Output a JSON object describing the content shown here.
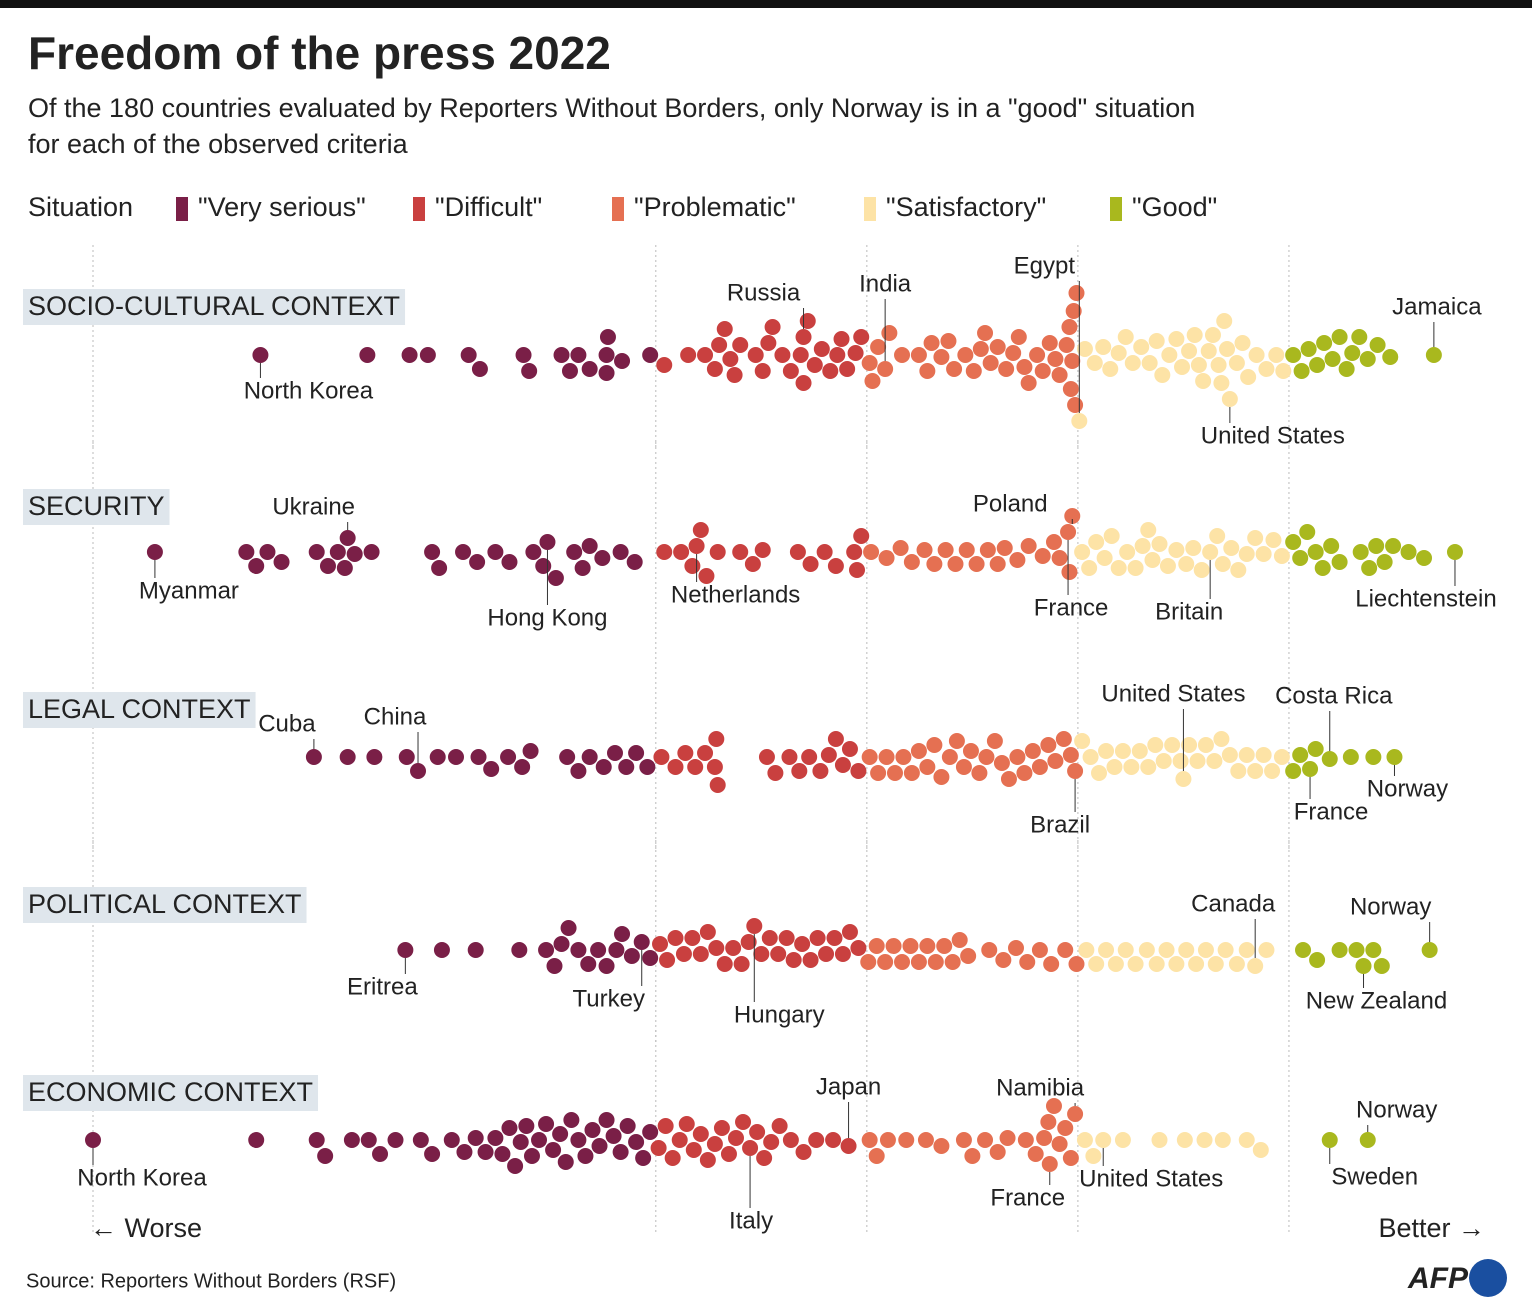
{
  "title": "Freedom of the press 2022",
  "subtitle": [
    "Of the 180 countries evaluated by Reporters Without Borders, only Norway is in a \"good\" situation",
    "for each of the observed criteria"
  ],
  "legend_title": "Situation",
  "legend": [
    {
      "name": "\"Very serious\"",
      "color": "#7a1f47"
    },
    {
      "name": "\"Difficult\"",
      "color": "#c9403f"
    },
    {
      "name": "\"Problematic\"",
      "color": "#e57052"
    },
    {
      "name": "\"Satisfactory\"",
      "color": "#fde3a6"
    },
    {
      "name": "\"Good\"",
      "color": "#a9b81e"
    }
  ],
  "chart_data": [
    {
      "type": "beeswarm",
      "title": "SOCIO-CULTURAL CONTEXT",
      "xlim": [
        0,
        100
      ],
      "xticks": [
        0,
        40,
        55,
        70,
        85
      ],
      "values": [
        11.9,
        19.5,
        22.5,
        23.8,
        26.7,
        27.5,
        30.6,
        31.0,
        33.3,
        33.9,
        34.5,
        35.3,
        36.5,
        36.5,
        36.6,
        37.6,
        39.6,
        40.6,
        42.3,
        43.5,
        44.2,
        44.5,
        44.9,
        45.3,
        45.6,
        46.0,
        47.1,
        47.6,
        48.0,
        48.3,
        49.0,
        49.6,
        50.3,
        50.5,
        50.5,
        50.8,
        51.3,
        51.8,
        52.4,
        52.9,
        53.2,
        53.6,
        54.2,
        54.6,
        55.2,
        55.4,
        55.8,
        56.3,
        56.6,
        57.5,
        58.7,
        59.3,
        59.6,
        60.3,
        60.8,
        61.2,
        62.0,
        62.6,
        63.1,
        63.4,
        63.8,
        64.3,
        64.9,
        65.4,
        65.8,
        66.2,
        66.5,
        67.1,
        67.5,
        68.0,
        68.4,
        68.7,
        69.2,
        69.4,
        69.5,
        69.6,
        69.7,
        69.8,
        69.9,
        70.1,
        70.5,
        71.2,
        71.8,
        72.3,
        72.9,
        73.4,
        73.9,
        74.5,
        75.1,
        75.6,
        76.0,
        76.5,
        77.0,
        77.4,
        77.9,
        78.3,
        78.6,
        78.9,
        79.3,
        79.6,
        80.0,
        80.2,
        80.4,
        80.6,
        80.8,
        81.3,
        81.7,
        82.1,
        82.7,
        83.4,
        84.1,
        84.6,
        85.3,
        85.9,
        86.4,
        87.0,
        87.5,
        88.1,
        88.6,
        89.1,
        89.5,
        90.0,
        90.6,
        91.3,
        92.2,
        95.3
      ],
      "annotations": [
        {
          "label": "North Korea",
          "value": 11.9
        },
        {
          "label": "Russia",
          "value": 50.5
        },
        {
          "label": "India",
          "value": 56.3
        },
        {
          "label": "Egypt",
          "value": 70.1
        },
        {
          "label": "Jamaica",
          "value": 95.3
        },
        {
          "label": "United States",
          "value": 80.8
        }
      ]
    },
    {
      "type": "beeswarm",
      "title": "SECURITY",
      "xlim": [
        0,
        100
      ],
      "xticks": [
        0,
        40,
        55,
        70,
        85
      ],
      "values": [
        4.4,
        10.9,
        11.6,
        12.4,
        13.4,
        15.9,
        16.7,
        17.4,
        17.9,
        18.1,
        18.6,
        19.8,
        24.1,
        24.6,
        26.3,
        27.3,
        28.6,
        29.6,
        31.3,
        32.0,
        32.3,
        32.9,
        34.2,
        34.8,
        35.3,
        36.2,
        37.5,
        38.5,
        40.6,
        41.8,
        42.6,
        42.9,
        43.2,
        43.6,
        44.4,
        46.0,
        46.9,
        47.6,
        50.1,
        51.0,
        52.0,
        52.8,
        54.1,
        54.3,
        54.6,
        55.3,
        56.4,
        57.4,
        58.2,
        59.1,
        59.8,
        60.6,
        61.3,
        62.1,
        62.8,
        63.6,
        64.3,
        64.8,
        65.7,
        66.5,
        67.5,
        68.3,
        68.7,
        69.4,
        69.6,
        69.3,
        70.3,
        70.8,
        71.3,
        71.9,
        72.4,
        72.9,
        73.5,
        74.1,
        74.6,
        75.0,
        75.3,
        75.8,
        76.4,
        77.0,
        77.7,
        78.2,
        78.8,
        79.4,
        79.9,
        80.3,
        80.9,
        81.4,
        82.0,
        82.6,
        83.2,
        83.9,
        84.5,
        85.3,
        85.8,
        86.3,
        86.9,
        87.4,
        88.0,
        88.6,
        90.1,
        90.7,
        91.2,
        91.8,
        92.4,
        93.5,
        94.6,
        96.8
      ],
      "annotations": [
        {
          "label": "Myanmar",
          "value": 4.4
        },
        {
          "label": "Ukraine",
          "value": 18.1
        },
        {
          "label": "Hong Kong",
          "value": 32.3
        },
        {
          "label": "Netherlands",
          "value": 42.9
        },
        {
          "label": "Poland",
          "value": 69.6
        },
        {
          "label": "France",
          "value": 69.3
        },
        {
          "label": "Britain",
          "value": 79.4
        },
        {
          "label": "Liechtenstein",
          "value": 96.8
        }
      ]
    },
    {
      "type": "beeswarm",
      "title": "LEGAL CONTEXT",
      "xlim": [
        0,
        100
      ],
      "xticks": [
        0,
        40,
        55,
        70,
        85
      ],
      "values": [
        15.7,
        18.1,
        20.0,
        22.3,
        23.1,
        24.5,
        25.8,
        27.4,
        28.3,
        29.5,
        30.5,
        31.1,
        33.7,
        34.5,
        35.3,
        36.3,
        37.1,
        37.9,
        38.6,
        39.4,
        40.4,
        41.4,
        42.1,
        42.8,
        43.5,
        44.2,
        44.3,
        44.4,
        47.9,
        48.5,
        49.5,
        50.2,
        50.9,
        51.7,
        52.3,
        52.8,
        53.3,
        53.8,
        54.4,
        55.2,
        55.8,
        56.4,
        57.0,
        57.6,
        58.2,
        58.7,
        59.3,
        59.8,
        60.3,
        60.9,
        61.4,
        61.9,
        62.4,
        63.0,
        63.5,
        64.1,
        64.6,
        65.1,
        65.7,
        66.2,
        66.8,
        67.3,
        67.9,
        68.4,
        69.0,
        69.5,
        69.8,
        70.3,
        70.9,
        71.5,
        72.0,
        72.6,
        73.2,
        73.8,
        74.4,
        75.0,
        75.5,
        76.1,
        76.7,
        77.3,
        77.5,
        77.9,
        78.5,
        79.1,
        79.7,
        80.2,
        80.8,
        81.4,
        82.0,
        82.6,
        83.2,
        83.8,
        84.5,
        85.3,
        85.8,
        86.5,
        86.9,
        87.9,
        89.4,
        91.0,
        92.5
      ],
      "annotations": [
        {
          "label": "Cuba",
          "value": 15.7
        },
        {
          "label": "China",
          "value": 23.1
        },
        {
          "label": "Brazil",
          "value": 69.8
        },
        {
          "label": "United States",
          "value": 77.5
        },
        {
          "label": "Costa Rica",
          "value": 87.9
        },
        {
          "label": "France",
          "value": 86.5
        },
        {
          "label": "Norway",
          "value": 92.5
        }
      ]
    },
    {
      "type": "beeswarm",
      "title": "POLITICAL CONTEXT",
      "xlim": [
        0,
        100
      ],
      "xticks": [
        0,
        40,
        55,
        70,
        85
      ],
      "values": [
        22.2,
        24.8,
        27.2,
        30.3,
        32.2,
        32.8,
        33.3,
        33.8,
        34.5,
        35.2,
        35.9,
        36.5,
        37.2,
        37.6,
        38.3,
        39.0,
        39.6,
        40.3,
        40.8,
        41.4,
        42.0,
        42.6,
        43.2,
        43.7,
        44.3,
        44.9,
        45.5,
        46.1,
        46.6,
        47.0,
        47.5,
        48.1,
        48.7,
        49.3,
        49.8,
        50.4,
        51.0,
        51.5,
        52.1,
        52.7,
        53.3,
        53.8,
        54.4,
        55.1,
        55.7,
        56.3,
        56.9,
        57.5,
        58.1,
        58.7,
        59.3,
        59.9,
        60.5,
        61.1,
        61.6,
        62.2,
        63.7,
        64.7,
        65.6,
        66.4,
        67.3,
        68.1,
        69.1,
        69.9,
        70.6,
        71.3,
        72.0,
        72.7,
        73.4,
        74.1,
        74.9,
        75.6,
        76.3,
        77.0,
        77.7,
        78.4,
        79.1,
        79.8,
        80.5,
        81.3,
        82.0,
        82.6,
        83.4,
        86.0,
        87.0,
        88.6,
        89.8,
        90.3,
        91.0,
        91.6,
        95.0
      ],
      "annotations": [
        {
          "label": "Eritrea",
          "value": 22.2
        },
        {
          "label": "Turkey",
          "value": 39.0
        },
        {
          "label": "Hungary",
          "value": 47.0
        },
        {
          "label": "Canada",
          "value": 82.6
        },
        {
          "label": "Norway",
          "value": 95.0
        },
        {
          "label": "New Zealand",
          "value": 90.3
        }
      ]
    },
    {
      "type": "beeswarm",
      "title": "ECONOMIC CONTEXT",
      "xlim": [
        0,
        100
      ],
      "xticks": [
        0,
        40,
        55,
        70,
        85
      ],
      "values": [
        0,
        11.6,
        15.9,
        16.5,
        18.4,
        19.6,
        20.4,
        21.5,
        23.3,
        24.1,
        25.5,
        26.4,
        27.2,
        27.9,
        28.6,
        29.1,
        29.6,
        30.0,
        30.4,
        30.8,
        31.2,
        31.7,
        32.2,
        32.7,
        33.2,
        33.6,
        34.0,
        34.5,
        35.0,
        35.5,
        36.0,
        36.5,
        37.0,
        37.5,
        38.0,
        38.6,
        39.1,
        39.6,
        40.2,
        40.7,
        41.2,
        41.7,
        42.2,
        42.7,
        43.2,
        43.7,
        44.2,
        44.7,
        45.2,
        45.7,
        46.2,
        46.7,
        47.2,
        47.7,
        48.2,
        48.8,
        49.6,
        50.5,
        51.4,
        52.6,
        53.7,
        55.2,
        55.7,
        56.5,
        57.8,
        59.2,
        60.3,
        61.9,
        62.5,
        63.4,
        64.3,
        65.0,
        66.3,
        67.0,
        67.6,
        67.9,
        68.0,
        68.3,
        68.7,
        69.1,
        69.5,
        69.8,
        70.5,
        71.1,
        71.8,
        73.2,
        75.8,
        77.6,
        79.0,
        80.3,
        82.0,
        83.0,
        87.9,
        90.6
      ],
      "annotations": [
        {
          "label": "North Korea",
          "value": 0
        },
        {
          "label": "Japan",
          "value": 53.7
        },
        {
          "label": "Italy",
          "value": 46.7
        },
        {
          "label": "Namibia",
          "value": 69.8
        },
        {
          "label": "France",
          "value": 68.0
        },
        {
          "label": "United States",
          "value": 71.8
        },
        {
          "label": "Norway",
          "value": 90.6
        },
        {
          "label": "Sweden",
          "value": 87.9
        }
      ]
    }
  ],
  "worse": "←  Worse",
  "better": "Better  →",
  "source": "Source: Reporters Without Borders (RSF)",
  "logo": "AFP"
}
